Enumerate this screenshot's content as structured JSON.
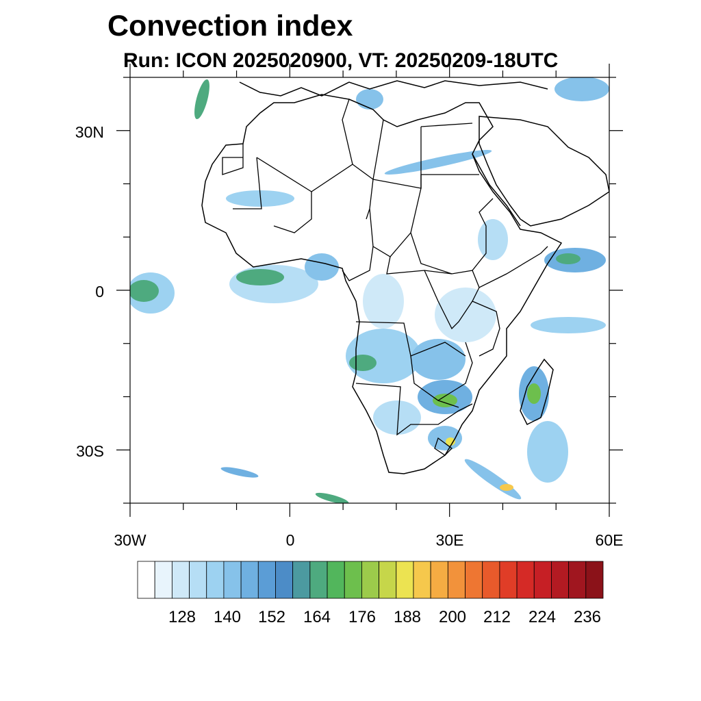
{
  "title": "Convection index",
  "subtitle": "Run: ICON 2025020900,  VT: 20250209-18UTC",
  "map": {
    "projection": "lat-lon",
    "lon_range": [
      -30,
      60
    ],
    "lat_range": [
      -40,
      40
    ],
    "lat_labels": [
      "30N",
      "0",
      "30S"
    ],
    "lon_labels": [
      "30W",
      "0",
      "30E",
      "60E"
    ]
  },
  "colorbar": {
    "labels": [
      "128",
      "140",
      "152",
      "164",
      "176",
      "188",
      "200",
      "212",
      "224",
      "236"
    ],
    "colors": [
      "#ffffff",
      "#e8f4fc",
      "#cfe9f8",
      "#b6def5",
      "#9dd2f1",
      "#86c2ea",
      "#6fb0e1",
      "#5b9dd6",
      "#4c8cc7",
      "#4c9aa0",
      "#4eaa7f",
      "#52b65c",
      "#6dbf4d",
      "#9ccb4b",
      "#c6d64a",
      "#ece351",
      "#f6c84c",
      "#f5ac43",
      "#f2923b",
      "#ee7632",
      "#e85a2b",
      "#e03d27",
      "#d52a26",
      "#c61f25",
      "#b31a22",
      "#a0161f",
      "#8b1219"
    ]
  }
}
